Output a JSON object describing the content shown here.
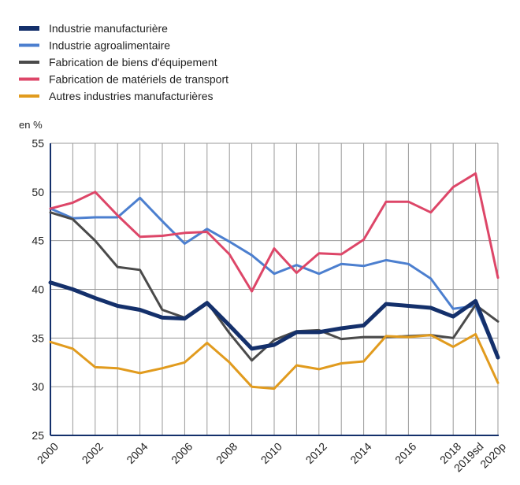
{
  "chart_data": {
    "type": "line",
    "title": "",
    "ylabel": "en %",
    "xlabel": "",
    "ylim": [
      25,
      55
    ],
    "yticks": [
      25,
      30,
      35,
      40,
      45,
      50,
      55
    ],
    "grid": true,
    "legend_position": "top-left",
    "x": [
      "2000",
      "2001",
      "2002",
      "2003",
      "2004",
      "2005",
      "2006",
      "2007",
      "2008",
      "2009",
      "2010",
      "2011",
      "2012",
      "2013",
      "2014",
      "2015",
      "2016",
      "2017",
      "2018",
      "2019sd",
      "2020p"
    ],
    "xtick_labels": [
      "2000",
      "",
      "2002",
      "",
      "2004",
      "",
      "2006",
      "",
      "2008",
      "",
      "2010",
      "",
      "2012",
      "",
      "2014",
      "",
      "2016",
      "",
      "2018",
      "2019sd",
      "2020p"
    ],
    "series": [
      {
        "name": "Industrie manufacturière",
        "color": "#14306b",
        "values": [
          40.7,
          40.0,
          39.1,
          38.3,
          37.9,
          37.1,
          37.0,
          38.6,
          36.3,
          33.9,
          34.3,
          35.6,
          35.6,
          36.0,
          36.3,
          38.5,
          38.3,
          38.1,
          37.2,
          38.8,
          33.0
        ]
      },
      {
        "name": "Industrie agroalimentaire",
        "color": "#4c7fcf",
        "values": [
          48.3,
          47.3,
          47.4,
          47.4,
          49.4,
          47.0,
          44.7,
          46.2,
          44.9,
          43.5,
          41.6,
          42.5,
          41.6,
          42.6,
          42.4,
          43.0,
          42.6,
          41.1,
          38.0,
          38.3,
          33.0
        ]
      },
      {
        "name": "Fabrication de biens d'équipement",
        "color": "#4a4a4a",
        "values": [
          47.9,
          47.2,
          45.0,
          42.3,
          42.0,
          37.9,
          37.1,
          38.7,
          35.5,
          32.7,
          34.8,
          35.7,
          35.8,
          34.9,
          35.1,
          35.1,
          35.2,
          35.3,
          35.0,
          38.4,
          36.7
        ]
      },
      {
        "name": "Fabrication de matériels de transport",
        "color": "#dd4668",
        "values": [
          48.3,
          48.9,
          50.0,
          47.6,
          45.4,
          45.5,
          45.8,
          45.9,
          43.6,
          39.8,
          44.2,
          41.7,
          43.7,
          43.6,
          45.1,
          49.0,
          49.0,
          47.9,
          50.5,
          51.9,
          41.2
        ]
      },
      {
        "name": "Autres industries manufacturières",
        "color": "#e19b1e",
        "values": [
          34.6,
          33.9,
          32.0,
          31.9,
          31.4,
          31.9,
          32.5,
          34.5,
          32.5,
          30.0,
          29.8,
          32.2,
          31.8,
          32.4,
          32.6,
          35.2,
          35.1,
          35.3,
          34.1,
          35.4,
          30.4
        ]
      }
    ]
  }
}
